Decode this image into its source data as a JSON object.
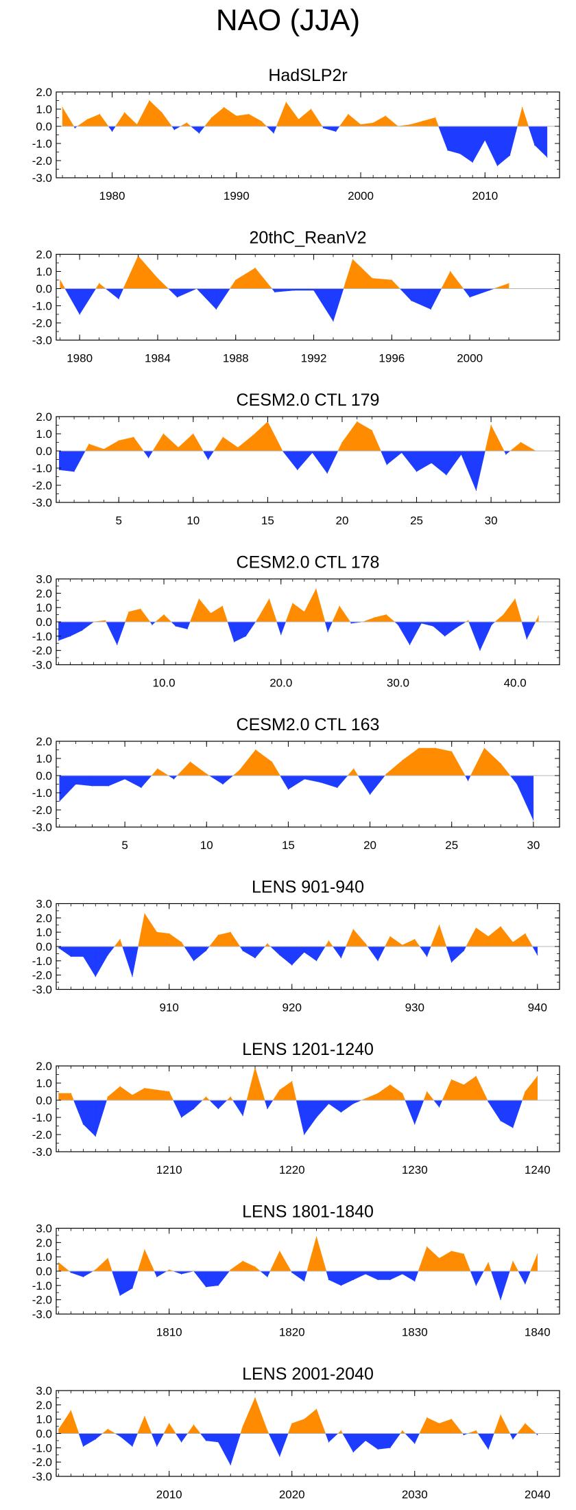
{
  "title": "NAO (JJA)",
  "colors": {
    "positive": "#ff8c00",
    "negative": "#1e3cff",
    "axis": "#000000",
    "zero_line": "#b4b4b4"
  },
  "chart_data": [
    {
      "type": "area",
      "title": "HadSLP2r",
      "ylim": [
        -3.0,
        2.0
      ],
      "yticks": [
        "2.0",
        "1.0",
        "0.0",
        "-1.0",
        "-2.0",
        "-3.0"
      ],
      "xlim": [
        1975.5,
        2016
      ],
      "xtick_values": [
        1980,
        1990,
        2000,
        2010
      ],
      "xtick_labels": [
        "1980",
        "1990",
        "2000",
        "2010"
      ],
      "x": [
        1976,
        1977,
        1978,
        1979,
        1980,
        1981,
        1982,
        1983,
        1984,
        1985,
        1986,
        1987,
        1988,
        1989,
        1990,
        1991,
        1992,
        1993,
        1994,
        1995,
        1996,
        1997,
        1998,
        1999,
        2000,
        2001,
        2002,
        2003,
        2004,
        2005,
        2006,
        2007,
        2008,
        2009,
        2010,
        2011,
        2012,
        2013,
        2014,
        2015
      ],
      "values": [
        1.1,
        -0.1,
        0.4,
        0.7,
        -0.3,
        0.8,
        0.1,
        1.5,
        0.8,
        -0.2,
        0.2,
        -0.4,
        0.5,
        1.1,
        0.6,
        0.7,
        0.3,
        -0.4,
        1.4,
        0.4,
        1.0,
        -0.1,
        -0.3,
        0.7,
        0.1,
        0.2,
        0.6,
        0.0,
        0.1,
        0.3,
        0.5,
        -1.4,
        -1.6,
        -2.1,
        -0.8,
        -2.3,
        -1.7,
        1.1,
        -1.1,
        -1.8
      ]
    },
    {
      "type": "area",
      "title": "20thC_ReanV2",
      "ylim": [
        -3.0,
        2.0
      ],
      "yticks": [
        "2.0",
        "1.0",
        "0.0",
        "-1.0",
        "-2.0",
        "-3.0"
      ],
      "xlim": [
        1978.8,
        2004.6
      ],
      "xtick_values": [
        1980,
        1984,
        1988,
        1992,
        1996,
        2000
      ],
      "xtick_labels": [
        "1980",
        "1984",
        "1988",
        "1992",
        "1996",
        "2000"
      ],
      "x": [
        1979,
        1980,
        1981,
        1982,
        1983,
        1984,
        1985,
        1986,
        1987,
        1988,
        1989,
        1990,
        1991,
        1992,
        1993,
        1994,
        1995,
        1996,
        1997,
        1998,
        1999,
        2000,
        2001,
        2002
      ],
      "values": [
        0.5,
        -1.5,
        0.3,
        -0.6,
        1.9,
        0.6,
        -0.5,
        0.0,
        -1.2,
        0.5,
        1.2,
        -0.2,
        -0.1,
        -0.1,
        -1.9,
        1.7,
        0.6,
        0.5,
        -0.7,
        -1.2,
        1.0,
        -0.5,
        -0.1,
        0.3
      ]
    },
    {
      "type": "area",
      "title": "CESM2.0 CTL 179",
      "ylim": [
        -3.0,
        2.0
      ],
      "yticks": [
        "2.0",
        "1.0",
        "0.0",
        "-1.0",
        "-2.0",
        "-3.0"
      ],
      "xlim": [
        0.8,
        34.6
      ],
      "xtick_values": [
        5,
        10,
        15,
        20,
        25,
        30
      ],
      "xtick_labels": [
        "5",
        "10",
        "15",
        "20",
        "25",
        "30"
      ],
      "x": [
        1,
        2,
        3,
        4,
        5,
        6,
        7,
        8,
        9,
        10,
        11,
        12,
        13,
        14,
        15,
        16,
        17,
        18,
        19,
        20,
        21,
        22,
        23,
        24,
        25,
        26,
        27,
        28,
        29,
        30,
        31,
        32,
        33
      ],
      "values": [
        -1.1,
        -1.2,
        0.4,
        0.1,
        0.6,
        0.8,
        -0.4,
        1.0,
        0.2,
        1.0,
        -0.5,
        0.8,
        0.2,
        0.9,
        1.7,
        0.0,
        -1.1,
        -0.1,
        -1.3,
        0.5,
        1.7,
        1.2,
        -0.8,
        -0.1,
        -1.2,
        -0.7,
        -1.4,
        -0.2,
        -2.3,
        1.5,
        -0.2,
        0.5,
        0.0
      ]
    },
    {
      "type": "area",
      "title": "CESM2.0 CTL 178",
      "ylim": [
        -3.0,
        3.0
      ],
      "yticks": [
        "3.0",
        "2.0",
        "1.0",
        "0.0",
        "-1.0",
        "-2.0",
        "-3.0"
      ],
      "xlim": [
        0.8,
        43.8
      ],
      "xtick_values": [
        10,
        20,
        30,
        40
      ],
      "xtick_labels": [
        "10.0",
        "20.0",
        "30.0",
        "40.0"
      ],
      "x": [
        1,
        2,
        3,
        4,
        5,
        6,
        7,
        8,
        9,
        10,
        11,
        12,
        13,
        14,
        15,
        16,
        17,
        18,
        19,
        20,
        21,
        22,
        23,
        24,
        25,
        26,
        27,
        28,
        29,
        30,
        31,
        32,
        33,
        34,
        35,
        36,
        37,
        38,
        39,
        40,
        41,
        42
      ],
      "values": [
        -1.3,
        -1.0,
        -0.6,
        0.0,
        0.1,
        -1.6,
        0.7,
        0.9,
        -0.2,
        0.5,
        -0.3,
        -0.5,
        1.6,
        0.6,
        1.1,
        -1.4,
        -1.0,
        0.2,
        1.6,
        -0.9,
        1.3,
        0.7,
        2.3,
        -0.7,
        1.1,
        -0.1,
        0.0,
        0.3,
        0.5,
        -0.2,
        -1.6,
        -0.1,
        -0.3,
        -1.0,
        -0.4,
        0.1,
        -2.0,
        -0.2,
        0.5,
        1.6,
        -1.2,
        0.4
      ]
    },
    {
      "type": "area",
      "title": "CESM2.0 CTL 163",
      "ylim": [
        -3.0,
        2.0
      ],
      "yticks": [
        "2.0",
        "1.0",
        "0.0",
        "-1.0",
        "-2.0",
        "-3.0"
      ],
      "xlim": [
        0.8,
        31.6
      ],
      "xtick_values": [
        5,
        10,
        15,
        20,
        25,
        30
      ],
      "xtick_labels": [
        "5",
        "10",
        "15",
        "20",
        "25",
        "30"
      ],
      "x": [
        1,
        2,
        3,
        4,
        5,
        6,
        7,
        8,
        9,
        10,
        11,
        12,
        13,
        14,
        15,
        16,
        17,
        18,
        19,
        20,
        21,
        22,
        23,
        24,
        25,
        26,
        27,
        28,
        29,
        30
      ],
      "values": [
        -1.5,
        -0.5,
        -0.6,
        -0.6,
        -0.2,
        -0.7,
        0.4,
        -0.2,
        0.8,
        0.1,
        -0.5,
        0.3,
        1.5,
        0.8,
        -0.8,
        -0.2,
        -0.4,
        -0.7,
        0.4,
        -1.1,
        0.1,
        0.9,
        1.6,
        1.6,
        1.4,
        -0.3,
        1.6,
        0.7,
        -0.5,
        -2.6
      ]
    },
    {
      "type": "area",
      "title": "LENS 901-940",
      "ylim": [
        -3.0,
        3.0
      ],
      "yticks": [
        "3.0",
        "2.0",
        "1.0",
        "0.0",
        "-1.0",
        "-2.0",
        "-3.0"
      ],
      "xlim": [
        900.8,
        941.8
      ],
      "xtick_values": [
        910,
        920,
        930,
        940
      ],
      "xtick_labels": [
        "910",
        "920",
        "930",
        "940"
      ],
      "x": [
        901,
        902,
        903,
        904,
        905,
        906,
        907,
        908,
        909,
        910,
        911,
        912,
        913,
        914,
        915,
        916,
        917,
        918,
        919,
        920,
        921,
        922,
        923,
        924,
        925,
        926,
        927,
        928,
        929,
        930,
        931,
        932,
        933,
        934,
        935,
        936,
        937,
        938,
        939,
        940
      ],
      "values": [
        -0.1,
        -0.7,
        -0.7,
        -2.1,
        -0.6,
        0.5,
        -2.1,
        2.3,
        1.0,
        0.9,
        0.3,
        -1.0,
        -0.3,
        0.8,
        1.0,
        -0.3,
        -0.8,
        0.2,
        -0.6,
        -1.3,
        -0.4,
        -1.0,
        0.4,
        -0.8,
        1.2,
        0.2,
        -1.0,
        0.7,
        0.1,
        0.5,
        -0.7,
        1.5,
        -1.1,
        -0.3,
        1.3,
        0.7,
        1.4,
        0.3,
        0.9,
        -0.6
      ]
    },
    {
      "type": "area",
      "title": "LENS 1201-1240",
      "ylim": [
        -3.0,
        2.0
      ],
      "yticks": [
        "2.0",
        "1.0",
        "0.0",
        "-1.0",
        "-2.0",
        "-3.0"
      ],
      "xlim": [
        1200.8,
        1241.8
      ],
      "xtick_values": [
        1210,
        1220,
        1230,
        1240
      ],
      "xtick_labels": [
        "1210",
        "1220",
        "1230",
        "1240"
      ],
      "x": [
        1201,
        1202,
        1203,
        1204,
        1205,
        1206,
        1207,
        1208,
        1209,
        1210,
        1211,
        1212,
        1213,
        1214,
        1215,
        1216,
        1217,
        1218,
        1219,
        1220,
        1221,
        1222,
        1223,
        1224,
        1225,
        1226,
        1227,
        1228,
        1229,
        1230,
        1231,
        1232,
        1233,
        1234,
        1235,
        1236,
        1237,
        1238,
        1239,
        1240
      ],
      "values": [
        0.4,
        0.4,
        -1.4,
        -2.1,
        0.2,
        0.8,
        0.3,
        0.7,
        0.6,
        0.5,
        -1.0,
        -0.5,
        0.2,
        -0.5,
        0.2,
        -0.9,
        1.9,
        -0.5,
        0.6,
        1.1,
        -2.0,
        -1.0,
        -0.2,
        -0.7,
        -0.2,
        0.1,
        0.4,
        0.9,
        0.4,
        -1.4,
        0.5,
        -0.4,
        1.2,
        0.9,
        1.4,
        -0.1,
        -1.2,
        -1.6,
        0.5,
        1.4
      ]
    },
    {
      "type": "area",
      "title": "LENS 1801-1840",
      "ylim": [
        -3.0,
        3.0
      ],
      "yticks": [
        "3.0",
        "2.0",
        "1.0",
        "0.0",
        "-1.0",
        "-2.0",
        "-3.0"
      ],
      "xlim": [
        1800.8,
        1841.8
      ],
      "xtick_values": [
        1810,
        1820,
        1830,
        1840
      ],
      "xtick_labels": [
        "1810",
        "1820",
        "1830",
        "1840"
      ],
      "x": [
        1801,
        1802,
        1803,
        1804,
        1805,
        1806,
        1807,
        1808,
        1809,
        1810,
        1811,
        1812,
        1813,
        1814,
        1815,
        1816,
        1817,
        1818,
        1819,
        1820,
        1821,
        1822,
        1823,
        1824,
        1825,
        1826,
        1827,
        1828,
        1829,
        1830,
        1831,
        1832,
        1833,
        1834,
        1835,
        1836,
        1837,
        1838,
        1839,
        1840
      ],
      "values": [
        0.6,
        -0.1,
        -0.4,
        0.1,
        0.9,
        -1.7,
        -1.2,
        1.5,
        -0.4,
        0.1,
        -0.2,
        0.0,
        -1.1,
        -1.0,
        0.1,
        0.7,
        0.3,
        -0.4,
        1.4,
        -0.1,
        -0.7,
        2.4,
        -0.6,
        -1.0,
        -0.6,
        -0.2,
        -0.6,
        -0.6,
        -0.2,
        -0.7,
        1.7,
        0.9,
        1.4,
        1.2,
        -1.0,
        0.6,
        -2.0,
        0.7,
        -0.9,
        1.2
      ]
    },
    {
      "type": "area",
      "title": "LENS 2001-2040",
      "ylim": [
        -3.0,
        3.0
      ],
      "yticks": [
        "3.0",
        "2.0",
        "1.0",
        "0.0",
        "-1.0",
        "-2.0",
        "-3.0"
      ],
      "xlim": [
        2000.8,
        2041.8
      ],
      "xtick_values": [
        2010,
        2020,
        2030,
        2040
      ],
      "xtick_labels": [
        "2010",
        "2020",
        "2030",
        "2040"
      ],
      "x": [
        2001,
        2002,
        2003,
        2004,
        2005,
        2006,
        2007,
        2008,
        2009,
        2010,
        2011,
        2012,
        2013,
        2014,
        2015,
        2016,
        2017,
        2018,
        2019,
        2020,
        2021,
        2022,
        2023,
        2024,
        2025,
        2026,
        2027,
        2028,
        2029,
        2030,
        2031,
        2032,
        2033,
        2034,
        2035,
        2036,
        2037,
        2038,
        2039,
        2040
      ],
      "values": [
        0.3,
        1.6,
        -0.9,
        -0.4,
        0.3,
        -0.2,
        -0.9,
        1.2,
        -0.9,
        0.7,
        -0.6,
        0.6,
        -0.5,
        -0.6,
        -2.2,
        0.5,
        2.5,
        0.2,
        -1.6,
        0.7,
        1.0,
        1.7,
        -0.6,
        0.2,
        -1.3,
        -0.5,
        -1.1,
        -1.0,
        0.2,
        -0.7,
        1.1,
        0.7,
        1.0,
        -0.1,
        0.2,
        -1.1,
        1.3,
        -0.4,
        0.7,
        -0.1
      ]
    }
  ]
}
